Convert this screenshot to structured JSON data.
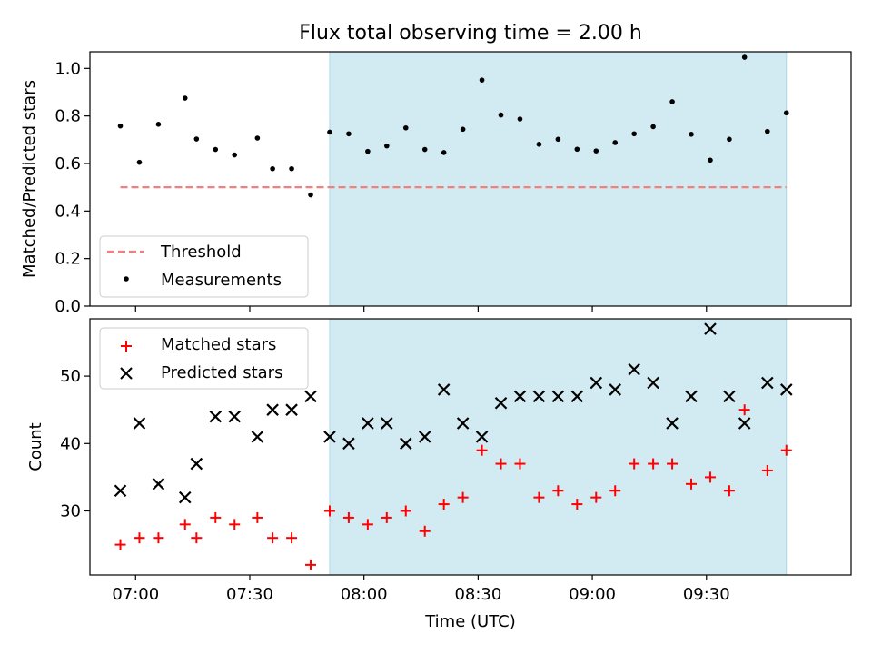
{
  "chart_data": [
    {
      "type": "scatter",
      "title": "Flux total observing time = 2.00 h",
      "xlabel": "",
      "ylabel": "Matched/Predicted stars",
      "ylim": [
        0.0,
        1.07
      ],
      "yticks": [
        "0.0",
        "0.2",
        "0.4",
        "0.6",
        "0.8",
        "1.0"
      ],
      "ytick_values": [
        0.0,
        0.2,
        0.4,
        0.6,
        0.8,
        1.0
      ],
      "shaded_interval": {
        "start": "07:51",
        "end": "09:51",
        "color": "#add8e6"
      },
      "series": [
        {
          "name": "Threshold",
          "kind": "dashed-line",
          "color": "#f08080",
          "x": [
            "06:56",
            "09:51"
          ],
          "y": [
            0.5,
            0.5
          ]
        },
        {
          "name": "Measurements",
          "kind": "dot",
          "color": "#000000",
          "x": [
            "06:56",
            "07:01",
            "07:06",
            "07:13",
            "07:16",
            "07:21",
            "07:26",
            "07:32",
            "07:36",
            "07:41",
            "07:46",
            "07:51",
            "07:56",
            "08:01",
            "08:06",
            "08:11",
            "08:16",
            "08:21",
            "08:26",
            "08:31",
            "08:36",
            "08:41",
            "08:46",
            "08:51",
            "08:56",
            "09:01",
            "09:06",
            "09:11",
            "09:16",
            "09:21",
            "09:26",
            "09:31",
            "09:36",
            "09:40",
            "09:46",
            "09:51"
          ],
          "y": [
            0.758,
            0.605,
            0.765,
            0.875,
            0.703,
            0.659,
            0.636,
            0.707,
            0.578,
            0.578,
            0.468,
            0.732,
            0.725,
            0.651,
            0.674,
            0.75,
            0.659,
            0.646,
            0.744,
            0.951,
            0.804,
            0.787,
            0.681,
            0.702,
            0.66,
            0.653,
            0.688,
            0.725,
            0.755,
            0.86,
            0.723,
            0.614,
            0.702,
            1.047,
            0.735,
            0.813
          ]
        }
      ],
      "legend": {
        "placement": "lower-left",
        "entries": [
          "Threshold",
          "Measurements"
        ]
      }
    },
    {
      "type": "scatter",
      "title": "",
      "xlabel": "Time (UTC)",
      "ylabel": "Count",
      "ylim": [
        20.5,
        58.5
      ],
      "yticks": [
        "30",
        "40",
        "50"
      ],
      "ytick_values": [
        30,
        40,
        50
      ],
      "xlim": [
        "06:48",
        "10:08"
      ],
      "xticks": [
        "07:00",
        "07:30",
        "08:00",
        "08:30",
        "09:00",
        "09:30"
      ],
      "shaded_interval": {
        "start": "07:51",
        "end": "09:51",
        "color": "#add8e6"
      },
      "series": [
        {
          "name": "Matched stars",
          "kind": "plus",
          "color": "#ff0000",
          "x": [
            "06:56",
            "07:01",
            "07:06",
            "07:13",
            "07:16",
            "07:21",
            "07:26",
            "07:32",
            "07:36",
            "07:41",
            "07:46",
            "07:51",
            "07:56",
            "08:01",
            "08:06",
            "08:11",
            "08:16",
            "08:21",
            "08:26",
            "08:31",
            "08:36",
            "08:41",
            "08:46",
            "08:51",
            "08:56",
            "09:01",
            "09:06",
            "09:11",
            "09:16",
            "09:21",
            "09:26",
            "09:31",
            "09:36",
            "09:40",
            "09:46",
            "09:51"
          ],
          "y": [
            25,
            26,
            26,
            28,
            26,
            29,
            28,
            29,
            26,
            26,
            22,
            30,
            29,
            28,
            29,
            30,
            27,
            31,
            32,
            39,
            37,
            37,
            32,
            33,
            31,
            32,
            33,
            37,
            37,
            37,
            34,
            35,
            33,
            45,
            36,
            39
          ]
        },
        {
          "name": "Predicted stars",
          "kind": "x",
          "color": "#000000",
          "x": [
            "06:56",
            "07:01",
            "07:06",
            "07:13",
            "07:16",
            "07:21",
            "07:26",
            "07:32",
            "07:36",
            "07:41",
            "07:46",
            "07:51",
            "07:56",
            "08:01",
            "08:06",
            "08:11",
            "08:16",
            "08:21",
            "08:26",
            "08:31",
            "08:36",
            "08:41",
            "08:46",
            "08:51",
            "08:56",
            "09:01",
            "09:06",
            "09:11",
            "09:16",
            "09:21",
            "09:26",
            "09:31",
            "09:36",
            "09:40",
            "09:46",
            "09:51"
          ],
          "y": [
            33,
            43,
            34,
            32,
            37,
            44,
            44,
            41,
            45,
            45,
            47,
            41,
            40,
            43,
            43,
            40,
            41,
            48,
            43,
            41,
            46,
            47,
            47,
            47,
            47,
            49,
            48,
            51,
            49,
            43,
            47,
            57,
            47,
            43,
            49,
            48
          ]
        }
      ],
      "legend": {
        "placement": "upper-left",
        "entries": [
          "Matched stars",
          "Predicted stars"
        ]
      }
    }
  ]
}
